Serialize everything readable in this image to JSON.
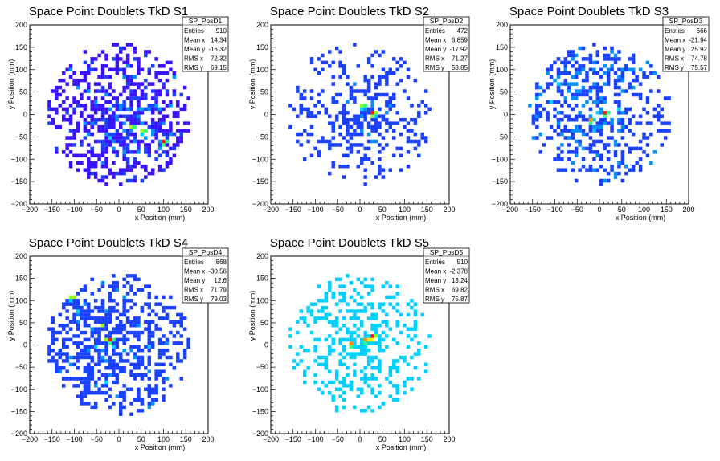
{
  "chart_data": [
    {
      "type": "heatmap",
      "title": "Space Point Doublets TkD S1",
      "xlabel": "x Position (mm)",
      "ylabel": "y Position (mm)",
      "xlim": [
        -200,
        200
      ],
      "ylim": [
        -200,
        200
      ],
      "x_ticks": [
        "−200",
        "−150",
        "−100",
        "−50",
        "0",
        "50",
        "100",
        "150",
        "200"
      ],
      "y_ticks": [
        "−200",
        "−150",
        "−100",
        "−50",
        "0",
        "50",
        "100",
        "150",
        "200"
      ],
      "stats": {
        "name": "SP_PosD1",
        "rows": [
          {
            "label": "Entries",
            "value": "910"
          },
          {
            "label": "Mean x",
            "value": "14.34"
          },
          {
            "label": "Mean y",
            "value": "-16.32"
          },
          {
            "label": "RMS x",
            "value": "72.32"
          },
          {
            "label": "RMS y",
            "value": "69.15"
          }
        ]
      },
      "entries": 910,
      "mean_x": 14.34,
      "mean_y": -16.32,
      "rms_x": 72.32,
      "rms_y": 69.15,
      "hot_spots": [
        [
          30,
          -30
        ],
        [
          50,
          -40
        ],
        [
          100,
          -60
        ]
      ],
      "dominant_colors": [
        "#1a1aff",
        "#00c8ff",
        "#40ff40",
        "#ffff00",
        "#ff2020"
      ]
    },
    {
      "type": "heatmap",
      "title": "Space Point Doublets TkD S2",
      "xlabel": "x Position (mm)",
      "ylabel": "y Position (mm)",
      "xlim": [
        -200,
        200
      ],
      "ylim": [
        -200,
        200
      ],
      "x_ticks": [
        "−200",
        "−150",
        "−100",
        "−50",
        "0",
        "50",
        "100",
        "150",
        "200"
      ],
      "y_ticks": [
        "−200",
        "−150",
        "−100",
        "−50",
        "0",
        "50",
        "100",
        "150",
        "200"
      ],
      "stats": {
        "name": "SP_PosD2",
        "rows": [
          {
            "label": "Entries",
            "value": "472"
          },
          {
            "label": "Mean x",
            "value": "6.859"
          },
          {
            "label": "Mean y",
            "value": "-17.92"
          },
          {
            "label": "RMS x",
            "value": "71.27"
          },
          {
            "label": "RMS y",
            "value": "53.85"
          }
        ]
      },
      "entries": 472,
      "mean_x": 6.859,
      "mean_y": -17.92,
      "rms_x": 71.27,
      "rms_y": 53.85,
      "hot_spots": [
        [
          0,
          20
        ],
        [
          30,
          0
        ]
      ],
      "dominant_colors": [
        "#4020ff",
        "#00c8ff",
        "#40ff40"
      ]
    },
    {
      "type": "heatmap",
      "title": "Space Point Doublets TkD S3",
      "xlabel": "x Position (mm)",
      "ylabel": "y Position (mm)",
      "xlim": [
        -200,
        200
      ],
      "ylim": [
        -200,
        200
      ],
      "x_ticks": [
        "−200",
        "−150",
        "−100",
        "−50",
        "0",
        "50",
        "100",
        "150",
        "200"
      ],
      "y_ticks": [
        "−200",
        "−150",
        "−100",
        "−50",
        "0",
        "50",
        "100",
        "150",
        "200"
      ],
      "stats": {
        "name": "SP_PosD3",
        "rows": [
          {
            "label": "Entries",
            "value": "666"
          },
          {
            "label": "Mean x",
            "value": "-21.94"
          },
          {
            "label": "Mean y",
            "value": "25.92"
          },
          {
            "label": "RMS x",
            "value": "74.78"
          },
          {
            "label": "RMS y",
            "value": "75.57"
          }
        ]
      },
      "entries": 666,
      "mean_x": -21.94,
      "mean_y": 25.92,
      "rms_x": 74.78,
      "rms_y": 75.57,
      "hot_spots": [
        [
          -20,
          -10
        ],
        [
          10,
          0
        ]
      ],
      "dominant_colors": [
        "#1a1aff",
        "#00c8ff",
        "#40ff40",
        "#ff2020"
      ]
    },
    {
      "type": "heatmap",
      "title": "Space Point Doublets TkD S4",
      "xlabel": "x Position (mm)",
      "ylabel": "y Position (mm)",
      "xlim": [
        -200,
        200
      ],
      "ylim": [
        -200,
        200
      ],
      "x_ticks": [
        "−200",
        "−150",
        "−100",
        "−50",
        "0",
        "50",
        "100",
        "150",
        "200"
      ],
      "y_ticks": [
        "−200",
        "−150",
        "−100",
        "−50",
        "0",
        "50",
        "100",
        "150",
        "200"
      ],
      "stats": {
        "name": "SP_PosD4",
        "rows": [
          {
            "label": "Entries",
            "value": "868"
          },
          {
            "label": "Mean x",
            "value": "-30.56"
          },
          {
            "label": "Mean y",
            "value": "12.6"
          },
          {
            "label": "RMS x",
            "value": "71.79"
          },
          {
            "label": "RMS y",
            "value": "79.03"
          }
        ]
      },
      "entries": 868,
      "mean_x": -30.56,
      "mean_y": 12.6,
      "rms_x": 71.79,
      "rms_y": 79.03,
      "hot_spots": [
        [
          -110,
          110
        ],
        [
          -20,
          10
        ]
      ],
      "dominant_colors": [
        "#1a1aff",
        "#00c8ff",
        "#40ff40",
        "#ff2020"
      ]
    },
    {
      "type": "heatmap",
      "title": "Space Point Doublets TkD S5",
      "xlabel": "x Position (mm)",
      "ylabel": "y Position (mm)",
      "xlim": [
        -200,
        200
      ],
      "ylim": [
        -200,
        200
      ],
      "x_ticks": [
        "−200",
        "−150",
        "−100",
        "−50",
        "0",
        "50",
        "100",
        "150",
        "200"
      ],
      "y_ticks": [
        "−200",
        "−150",
        "−100",
        "−50",
        "0",
        "50",
        "100",
        "150",
        "200"
      ],
      "stats": {
        "name": "SP_PosD5",
        "rows": [
          {
            "label": "Entries",
            "value": "510"
          },
          {
            "label": "Mean x",
            "value": "-2.378"
          },
          {
            "label": "Mean y",
            "value": "13.24"
          },
          {
            "label": "RMS x",
            "value": "69.82"
          },
          {
            "label": "RMS y",
            "value": "75.87"
          }
        ]
      },
      "entries": 510,
      "mean_x": -2.378,
      "mean_y": 13.24,
      "rms_x": 69.82,
      "rms_y": 75.87,
      "hot_spots": [
        [
          -20,
          0
        ],
        [
          10,
          10
        ],
        [
          30,
          20
        ]
      ],
      "dominant_colors": [
        "#00c8ff",
        "#40ff40",
        "#ffff00",
        "#ff2020"
      ]
    }
  ]
}
